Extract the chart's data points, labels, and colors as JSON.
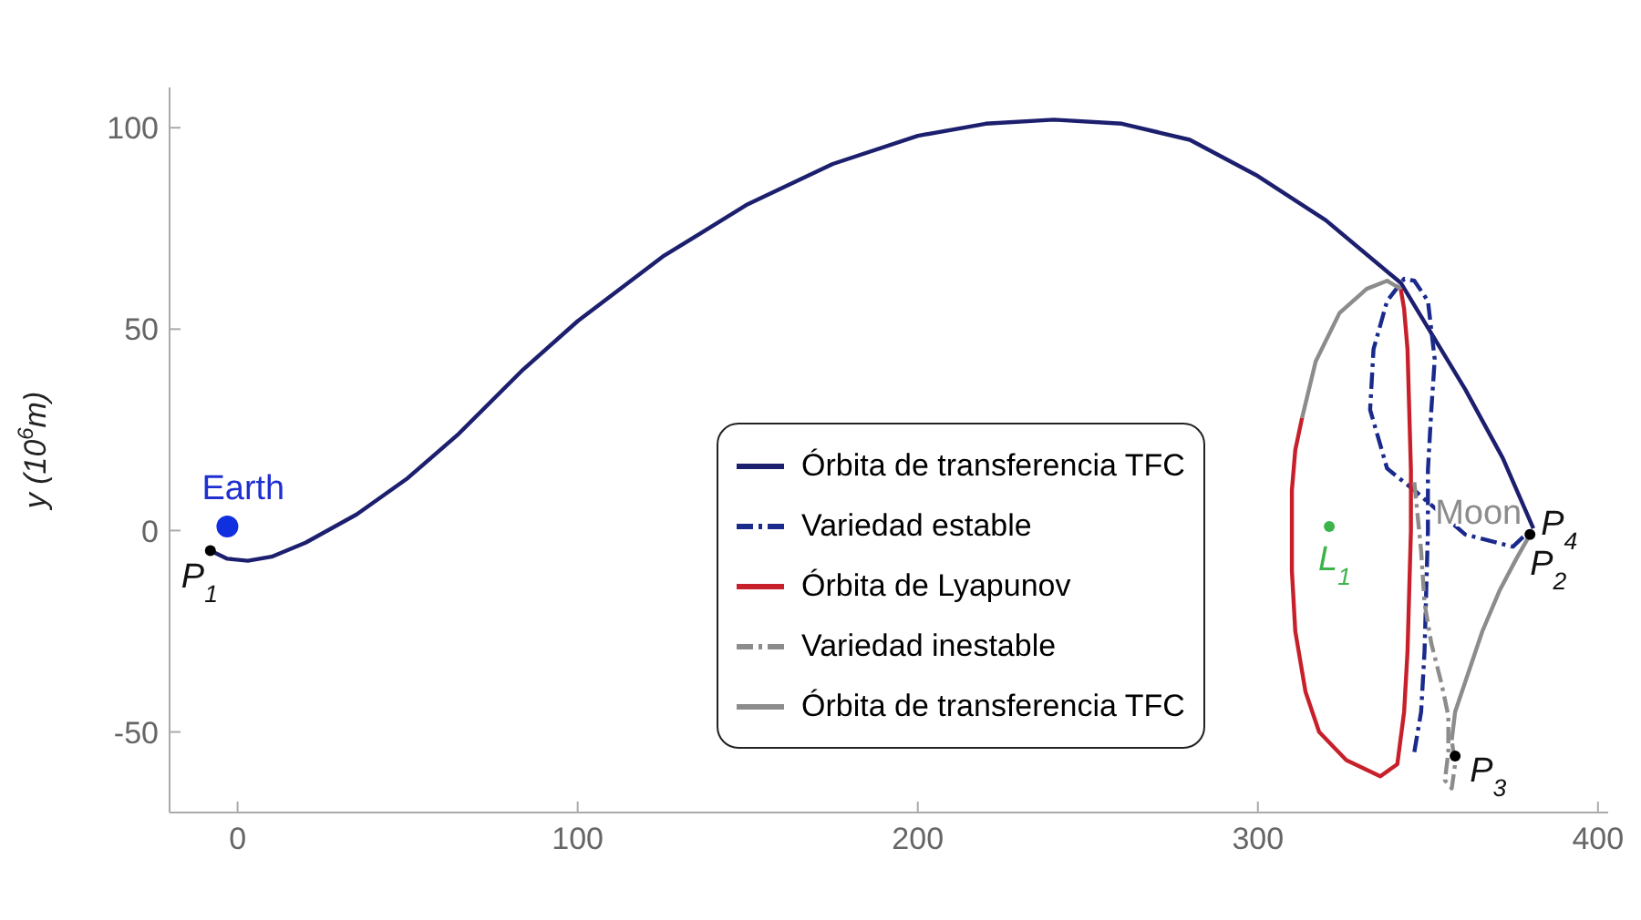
{
  "chart_data": {
    "type": "line",
    "ylabel": "y (10$^{6}$m)",
    "xlim": [
      -20,
      403
    ],
    "ylim": [
      -70,
      110
    ],
    "xticks": [
      0,
      100,
      200,
      300,
      400
    ],
    "yticks": [
      -50,
      0,
      50,
      100
    ],
    "grid": false,
    "legend": "bottom",
    "marker": "none",
    "series": [
      {
        "name": "Órbita de transferencia TFC",
        "color": "#1c1f6e",
        "line_style": "solid",
        "x": [
          -8,
          -3,
          3,
          10,
          20,
          35,
          50,
          65,
          84,
          100,
          125,
          150,
          175,
          200,
          220,
          240,
          260,
          280,
          300,
          320,
          342,
          361,
          372,
          381
        ],
        "values": [
          -5,
          -7,
          -7.5,
          -6.5,
          -3,
          4,
          13,
          24,
          40,
          52,
          68,
          81,
          91,
          98,
          101,
          102,
          101,
          97,
          88,
          77,
          61.5,
          35,
          18,
          0.5
        ]
      },
      {
        "name": "Variedad estable",
        "color": "#1a2a8c",
        "line_style": "dashed",
        "x": [
          346,
          348,
          349,
          349.5,
          350,
          350,
          351,
          352,
          350,
          346,
          343,
          338,
          334,
          333,
          338,
          346,
          361,
          375,
          380
        ],
        "values": [
          -55,
          -45,
          -30,
          -15,
          0,
          15,
          30,
          42.5,
          57,
          62,
          62.5,
          57,
          45,
          30,
          15.4,
          10,
          -1,
          -4,
          0
        ]
      },
      {
        "name": "Órbita de Lyapunov",
        "color": "#c8202a",
        "line_style": "solid",
        "x": [
          313,
          311,
          310,
          310,
          311,
          314,
          318,
          326,
          336,
          341,
          343,
          344,
          344.5,
          345,
          345,
          344.5,
          344,
          343,
          342
        ],
        "values": [
          28,
          20,
          10,
          -10,
          -25,
          -40,
          -50,
          -57,
          -61,
          -58,
          -45,
          -30,
          -15,
          0,
          15,
          30,
          45,
          55,
          60
        ]
      },
      {
        "name": "Variedad inestable",
        "color": "#8c8c8c",
        "line_style": "dashed",
        "x": [
          346,
          348,
          349,
          351,
          354,
          356,
          356,
          355,
          357,
          358,
          357
        ],
        "values": [
          12,
          -5,
          -18,
          -28,
          -38,
          -46,
          -55,
          -62,
          -64,
          -58,
          -52
        ]
      },
      {
        "name": "Órbita de transferencia TFC",
        "color": "#8c8c8c",
        "line_style": "solid",
        "x": [
          357,
          358,
          362,
          366,
          371,
          376,
          380,
          null,
          313,
          317,
          324,
          332,
          338,
          342
        ],
        "values": [
          -52,
          -45,
          -35,
          -25,
          -15,
          -7,
          -1,
          null,
          28,
          42,
          54,
          60,
          62,
          60
        ]
      },
      {
        "type": "scatter",
        "marker": "circle",
        "color": "#1030e0",
        "x": [
          -3
        ],
        "values": [
          1
        ]
      },
      {
        "type": "scatter",
        "marker": "circle",
        "color": "#3cb44b",
        "x": [
          321
        ],
        "values": [
          1
        ]
      },
      {
        "type": "scatter",
        "marker": "circle",
        "color": "#000000",
        "x": [
          -8,
          380,
          358
        ],
        "values": [
          -5,
          -1,
          -56
        ]
      }
    ],
    "annotations": [
      {
        "text": "Earth",
        "x": -3,
        "y": 1
      },
      {
        "text": "P$_{1}$",
        "x": -8,
        "y": -5
      },
      {
        "text": "Moon",
        "x": 380,
        "y": -1
      },
      {
        "text": "P$_{4}$",
        "x": 380,
        "y": -1
      },
      {
        "text": "P$_{2}$",
        "x": 380,
        "y": -1
      },
      {
        "text": "P$_{3}$",
        "x": 358,
        "y": -56
      },
      {
        "text": "L$_{1}$",
        "x": 321,
        "y": 1
      }
    ]
  }
}
